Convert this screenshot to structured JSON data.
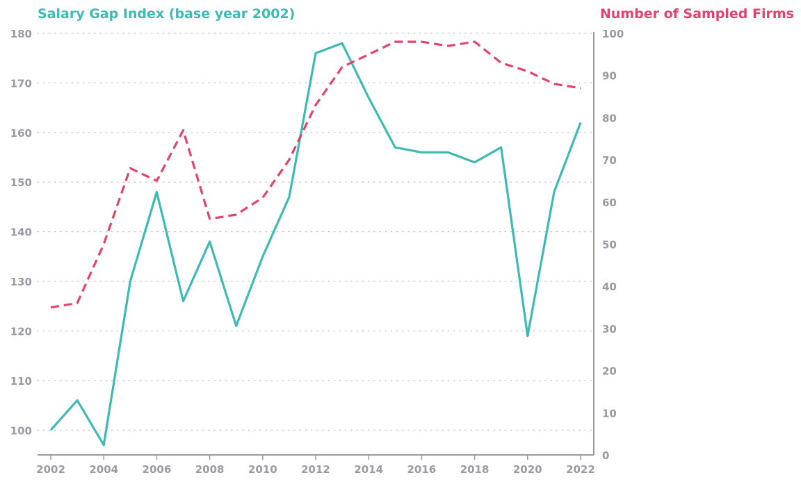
{
  "chart_data": {
    "type": "line",
    "x": [
      2002,
      2003,
      2004,
      2005,
      2006,
      2007,
      2008,
      2009,
      2010,
      2011,
      2012,
      2013,
      2014,
      2015,
      2016,
      2017,
      2018,
      2019,
      2020,
      2021,
      2022
    ],
    "x_ticks": [
      "2002",
      "2004",
      "2006",
      "2008",
      "2010",
      "2012",
      "2014",
      "2016",
      "2018",
      "2020",
      "2022"
    ],
    "y_left_ticks": [
      "100",
      "110",
      "120",
      "130",
      "140",
      "150",
      "160",
      "170",
      "180"
    ],
    "y_right_ticks": [
      "0",
      "10",
      "20",
      "30",
      "40",
      "50",
      "60",
      "70",
      "80",
      "90",
      "100"
    ],
    "ylim_left": [
      95,
      180
    ],
    "ylim_right": [
      0,
      100
    ],
    "xlim": [
      2001.5,
      2022.5
    ],
    "grid": "horizontal dotted",
    "series": [
      {
        "name": "Salary Gap Index (base year 2002)",
        "axis": "left",
        "style": "solid",
        "color": "#3dbab3",
        "values": [
          100,
          106,
          97,
          130,
          148,
          126,
          138,
          121,
          135,
          147,
          176,
          178,
          167,
          157,
          156,
          156,
          154,
          157,
          119,
          148,
          162
        ]
      },
      {
        "name": "Number of Sampled Firms",
        "axis": "right",
        "style": "dashed",
        "color": "#e2436c",
        "values": [
          35,
          36,
          50,
          68,
          65,
          77,
          56,
          57,
          61,
          70,
          83,
          92,
          95,
          98,
          98,
          97,
          98,
          93,
          91,
          88,
          87
        ]
      }
    ]
  }
}
